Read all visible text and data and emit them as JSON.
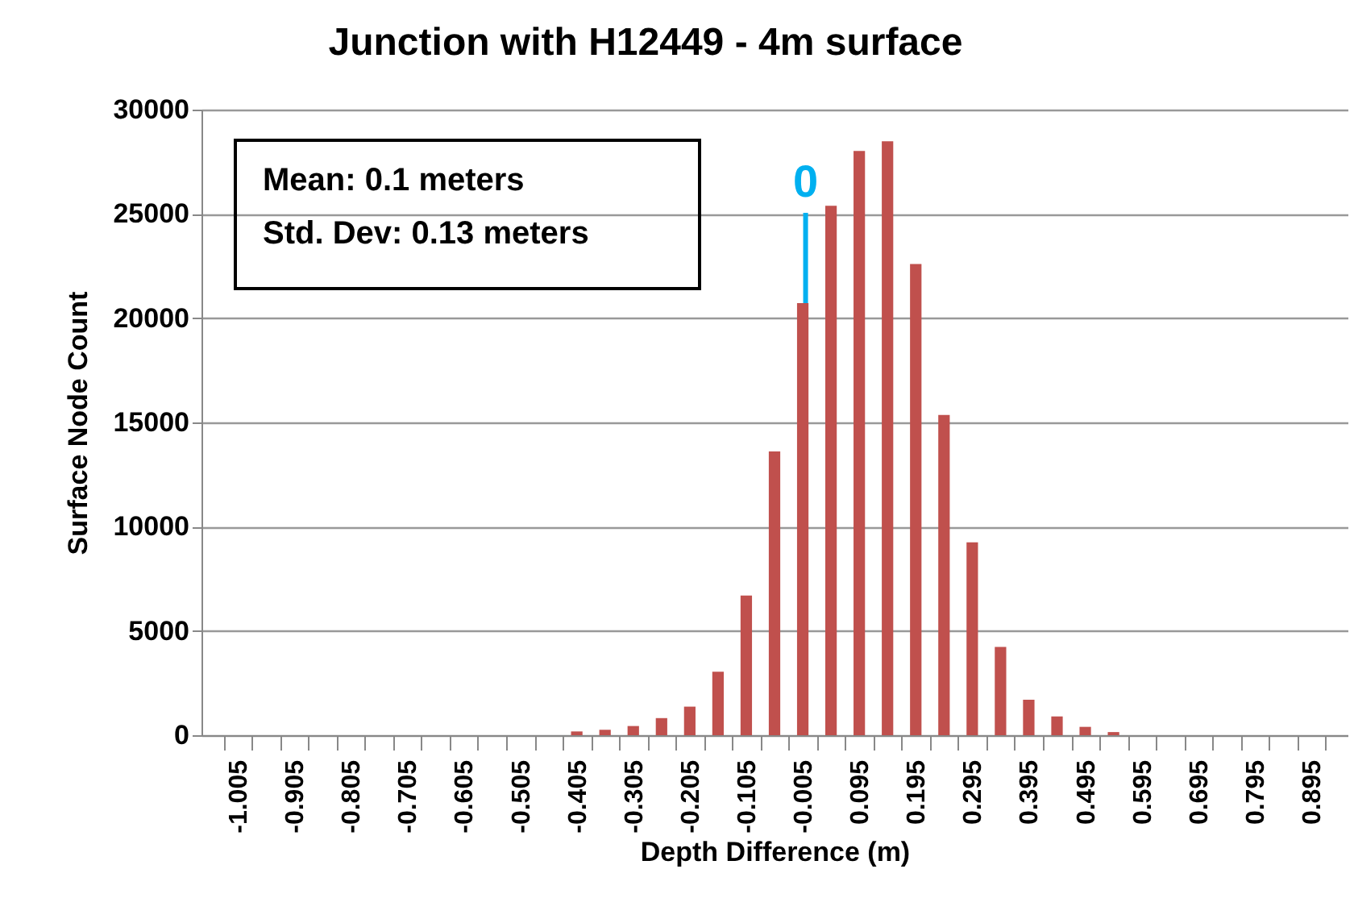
{
  "chart_data": {
    "type": "histogram",
    "title": "Junction with H12449 - 4m surface",
    "xlabel": "Depth Difference (m)",
    "ylabel": "Surface Node Count",
    "annotations": [
      "Mean:  0.1 meters",
      "Std. Dev:  0.13 meters"
    ],
    "bins": [
      -1.03,
      -0.98,
      -0.93,
      -0.88,
      -0.83,
      -0.78,
      -0.73,
      -0.68,
      -0.63,
      -0.58,
      -0.53,
      -0.48,
      -0.43,
      -0.38,
      -0.33,
      -0.28,
      -0.23,
      -0.18,
      -0.13,
      -0.08,
      -0.03,
      0.02,
      0.07,
      0.12,
      0.17,
      0.22,
      0.27,
      0.32,
      0.37,
      0.42,
      0.47,
      0.52,
      0.57,
      0.62,
      0.67,
      0.72,
      0.77,
      0.82,
      0.87,
      0.92
    ],
    "values": [
      0,
      0,
      0,
      0,
      0,
      0,
      0,
      0,
      0,
      0,
      0,
      0,
      180,
      260,
      440,
      820,
      1370,
      3040,
      6700,
      13610,
      20720,
      25390,
      28020,
      28480,
      22600,
      15360,
      9250,
      4230,
      1700,
      900,
      400,
      150,
      0,
      0,
      0,
      0,
      0,
      0,
      0
    ],
    "color": "#c0504d",
    "xlim": [
      -1.055,
      0.945
    ],
    "xticks": [
      {
        "value": -1.03,
        "label": null
      },
      -1.005,
      {
        "value": -0.98,
        "label": null
      },
      {
        "value": -0.93,
        "label": null
      },
      -0.905,
      {
        "value": -0.88,
        "label": null
      },
      {
        "value": -0.83,
        "label": null
      },
      -0.805,
      {
        "value": -0.78,
        "label": null
      },
      {
        "value": -0.73,
        "label": null
      },
      -0.705,
      {
        "value": -0.68,
        "label": null
      },
      {
        "value": -0.63,
        "label": null
      },
      -0.605,
      {
        "value": -0.58,
        "label": null
      },
      {
        "value": -0.53,
        "label": null
      },
      -0.505,
      {
        "value": -0.48,
        "label": null
      },
      {
        "value": -0.43,
        "label": null
      },
      -0.405,
      {
        "value": -0.38,
        "label": null
      },
      {
        "value": -0.33,
        "label": null
      },
      -0.305,
      {
        "value": -0.28,
        "label": null
      },
      {
        "value": -0.23,
        "label": null
      },
      -0.205,
      {
        "value": -0.18,
        "label": null
      },
      {
        "value": -0.13,
        "label": null
      },
      -0.105,
      {
        "value": -0.08,
        "label": null
      },
      {
        "value": -0.03,
        "label": null
      },
      -0.005,
      {
        "value": 0.02,
        "label": null
      },
      {
        "value": 0.07,
        "label": null
      },
      0.095,
      {
        "value": 0.12,
        "label": null
      },
      {
        "value": 0.17,
        "label": null
      },
      0.195,
      {
        "value": 0.22,
        "label": null
      },
      {
        "value": 0.27,
        "label": null
      },
      0.295,
      {
        "value": 0.32,
        "label": null
      },
      {
        "value": 0.37,
        "label": null
      },
      0.395,
      {
        "value": 0.42,
        "label": null
      },
      {
        "value": 0.47,
        "label": null
      },
      0.495,
      {
        "value": 0.52,
        "label": null
      },
      {
        "value": 0.57,
        "label": null
      },
      0.595,
      {
        "value": 0.62,
        "label": null
      },
      {
        "value": 0.67,
        "label": null
      },
      0.695,
      {
        "value": 0.72,
        "label": null
      },
      {
        "value": 0.77,
        "label": null
      },
      0.795,
      {
        "value": 0.82,
        "label": null
      },
      {
        "value": 0.87,
        "label": null
      },
      0.895,
      {
        "value": 0.92,
        "label": null
      }
    ],
    "ylim": [
      0,
      30000
    ],
    "yticks": [
      0,
      5000,
      10000,
      15000,
      20000,
      25000,
      30000
    ],
    "grid": "y",
    "ref_lines": [
      {
        "axis": "x",
        "value": 0,
        "label": "0",
        "color": "#00b0f0"
      }
    ]
  }
}
